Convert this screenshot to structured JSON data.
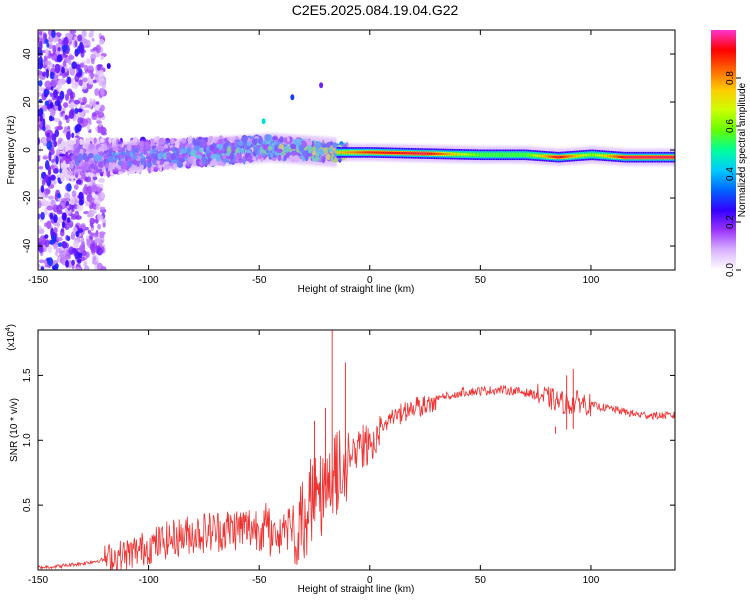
{
  "figure_title": "C2E5.2025.084.19.04.G22",
  "chart_data": [
    {
      "type": "heatmap",
      "xlabel": "Height of straight line (km)",
      "ylabel": "Frequency (Hz)",
      "xlim": [
        -150,
        138
      ],
      "ylim": [
        -50,
        50
      ],
      "xticks": [
        -150,
        -100,
        -50,
        0,
        50,
        100
      ],
      "yticks": [
        -40,
        -20,
        0,
        20,
        40
      ],
      "xtick_labels": [
        "-150",
        "-100",
        "-50",
        "0",
        "50",
        "100"
      ],
      "ytick_labels": [
        "-40",
        "-20",
        "0",
        "20",
        "40"
      ],
      "colorbar": {
        "label": "Normalized spectral amplitude",
        "range": [
          0,
          1
        ],
        "ticks": [
          0,
          0.2,
          0.4,
          0.6,
          0.8
        ],
        "tick_labels": [
          "0.0",
          "0.2",
          "0.4",
          "0.6",
          "0.8"
        ],
        "colors": [
          "#ffffff",
          "#d9b3ff",
          "#9933ff",
          "#3300ff",
          "#0066ff",
          "#00ccff",
          "#00ff99",
          "#66ff00",
          "#ccff00",
          "#ffcc00",
          "#ff6600",
          "#ff0000",
          "#ff33cc"
        ]
      },
      "ridge": [
        {
          "x": -135,
          "freq": -4,
          "amp": 0.3
        },
        {
          "x": -120,
          "freq": -3,
          "amp": 0.35
        },
        {
          "x": -100,
          "freq": -2,
          "amp": 0.4
        },
        {
          "x": -80,
          "freq": -1,
          "amp": 0.45
        },
        {
          "x": -60,
          "freq": 0,
          "amp": 0.5
        },
        {
          "x": -45,
          "freq": 1,
          "amp": 0.55
        },
        {
          "x": -30,
          "freq": 0,
          "amp": 0.6
        },
        {
          "x": -15,
          "freq": -1,
          "amp": 0.75
        },
        {
          "x": 0,
          "freq": -1,
          "amp": 0.9
        },
        {
          "x": 25,
          "freq": -1.5,
          "amp": 0.95
        },
        {
          "x": 50,
          "freq": -2,
          "amp": 0.55
        },
        {
          "x": 70,
          "freq": -2,
          "amp": 0.55
        },
        {
          "x": 85,
          "freq": -3,
          "amp": 0.95
        },
        {
          "x": 100,
          "freq": -2,
          "amp": 0.6
        },
        {
          "x": 115,
          "freq": -3,
          "amp": 0.95
        },
        {
          "x": 130,
          "freq": -3,
          "amp": 0.95
        }
      ]
    },
    {
      "type": "line",
      "xlabel": "Height of straight line (km)",
      "ylabel": "SNR (10 * v/v)",
      "yscale_label": "(x10",
      "yscale_exponent": "4",
      "xlim": [
        -150,
        138
      ],
      "ylim": [
        0,
        1.85
      ],
      "xticks": [
        -150,
        -100,
        -50,
        0,
        50,
        100
      ],
      "yticks": [
        0.5,
        1.0,
        1.5
      ],
      "xtick_labels": [
        "-150",
        "-100",
        "-50",
        "0",
        "50",
        "100"
      ],
      "ytick_labels": [
        "0.5",
        "1.0",
        "1.5"
      ],
      "color": "#ee3333",
      "series": [
        {
          "x": [
            -150,
            -140,
            -130,
            -120,
            -110,
            -100,
            -90,
            -80,
            -70,
            -60,
            -50,
            -40,
            -35,
            -30,
            -25,
            -20,
            -17,
            -15,
            -10,
            -5,
            0,
            10,
            20,
            30,
            40,
            50,
            60,
            70,
            80,
            85,
            90,
            95,
            100,
            110,
            120,
            130,
            138
          ],
          "y": [
            0.02,
            0.03,
            0.05,
            0.08,
            0.12,
            0.18,
            0.24,
            0.28,
            0.3,
            0.32,
            0.33,
            0.35,
            0.45,
            0.65,
            0.8,
            0.85,
            0.9,
            0.95,
            1.0,
            1.05,
            1.1,
            1.22,
            1.3,
            1.35,
            1.37,
            1.38,
            1.39,
            1.37,
            1.33,
            1.3,
            1.28,
            1.3,
            1.27,
            1.24,
            1.2,
            1.19,
            1.19
          ]
        }
      ],
      "spikes": [
        {
          "x": -17,
          "y": 1.85
        },
        {
          "x": -11,
          "y": 1.6
        },
        {
          "x": -20,
          "y": 1.25
        },
        {
          "x": -25,
          "y": 1.15
        },
        {
          "x": 89,
          "y": 1.5
        },
        {
          "x": 92,
          "y": 1.55
        },
        {
          "x": 84,
          "y": 1.05
        }
      ]
    }
  ]
}
